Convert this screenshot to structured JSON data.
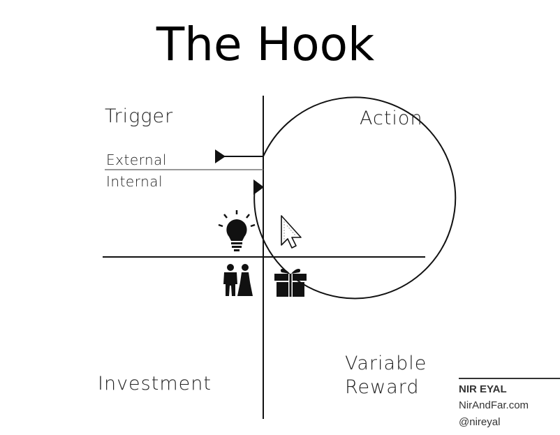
{
  "title": "The Hook",
  "quadrants": {
    "trigger": "Trigger",
    "action": "Action",
    "variable_reward_line1": "Variable",
    "variable_reward_line2": "Reward",
    "investment": "Investment"
  },
  "trigger_types": {
    "external": "External",
    "internal": "Internal"
  },
  "icons": {
    "trigger": "lightbulb-icon",
    "action": "cursor-icon",
    "reward": "gift-icon",
    "investment": "couple-icon"
  },
  "credit": {
    "name": "NIR EYAL",
    "site": "NirAndFar.com",
    "handle": "@nireyal"
  }
}
